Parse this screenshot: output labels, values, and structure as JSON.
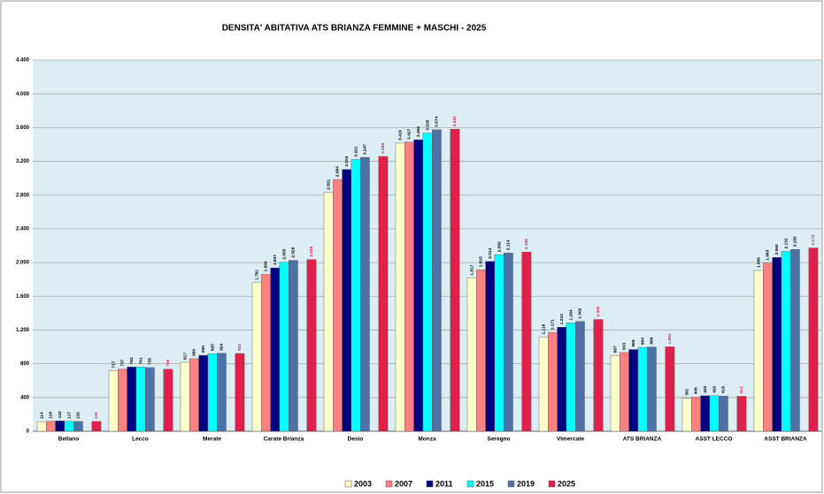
{
  "chart_data": {
    "type": "bar",
    "title": "DENSITA' ABITATIVA ATS BRIANZA  FEMMINE +  MASCHI - 2025",
    "categories": [
      "Bellano",
      "Lecco",
      "Merate",
      "Carate Brianza",
      "Desio",
      "Monza",
      "Seregno",
      "Vimercate",
      "ATS BRIANZA",
      "ASST LECCO",
      "ASST BRIANZA"
    ],
    "series": [
      {
        "name": "2003",
        "color": "#ffffcc",
        "label_color": "#000000",
        "values": [
          114,
          717,
          817,
          1761,
          2831,
          3416,
          1817,
          1116,
          897,
          391,
          1906
        ],
        "value_labels": [
          "114",
          "717",
          "817",
          "1.761",
          "2.831",
          "3.416",
          "1.817",
          "1.116",
          "897",
          "391",
          "1.906"
        ]
      },
      {
        "name": "2007",
        "color": "#ff8080",
        "label_color": "#000000",
        "values": [
          119,
          737,
          860,
          1860,
          2984,
          3427,
          1915,
          1171,
          933,
          406,
          1993
        ],
        "value_labels": [
          "119",
          "737",
          "860",
          "1.860",
          "2.984",
          "3.427",
          "1.915",
          "1.171",
          "933",
          "406",
          "1.993"
        ]
      },
      {
        "name": "2011",
        "color": "#000080",
        "label_color": "#000000",
        "values": [
          122,
          762,
          900,
          1937,
          3104,
          3456,
          2014,
          1234,
          969,
          422,
          2060
        ],
        "value_labels": [
          "122",
          "762",
          "900",
          "1.937",
          "3.104",
          "3.456",
          "2.014",
          "1.234",
          "969",
          "422",
          "2.060"
        ]
      },
      {
        "name": "2015",
        "color": "#00ffff",
        "label_color": "#000000",
        "values": [
          117,
          761,
          920,
          2005,
          3221,
          3535,
          2092,
          1284,
          994,
          422,
          2132
        ],
        "value_labels": [
          "117",
          "761",
          "920",
          "2.005",
          "3.221",
          "3.535",
          "2.092",
          "1.284",
          "994",
          "422",
          "2.132"
        ]
      },
      {
        "name": "2019",
        "color": "#4f72a6",
        "label_color": "#000000",
        "values": [
          116,
          755,
          924,
          2026,
          3247,
          3574,
          2114,
          1302,
          999,
          418,
          2155
        ],
        "value_labels": [
          "116",
          "755",
          "924",
          "2.026",
          "3.247",
          "3.574",
          "2.114",
          "1.302",
          "999",
          "418",
          "2.155"
        ]
      },
      {
        "name": "2025",
        "color": "#e0204a",
        "label_color": "#e0204a",
        "values": [
          116,
          736,
          922,
          2035,
          3258,
          3581,
          2125,
          1325,
          1001,
          414,
          2173
        ],
        "value_labels": [
          "116",
          "736",
          "922",
          "2.035",
          "3.258",
          "3.581",
          "2.125",
          "1.325",
          "1.001",
          "414",
          "2.173"
        ]
      }
    ],
    "ylim": [
      0,
      4400
    ],
    "yticks": [
      0,
      400,
      800,
      {
        "value": 1200,
        "label": "1.200"
      },
      {
        "value": 1600,
        "label": "1.600"
      },
      {
        "value": 2000,
        "label": "2.000"
      },
      {
        "value": 2400,
        "label": "2.400"
      },
      {
        "value": 2800,
        "label": "2.800"
      },
      {
        "value": 3200,
        "label": "3.200"
      },
      {
        "value": 3600,
        "label": "3.600"
      },
      {
        "value": 4000,
        "label": "4.000"
      },
      {
        "value": 4400,
        "label": "4.400"
      }
    ],
    "grid": true
  }
}
